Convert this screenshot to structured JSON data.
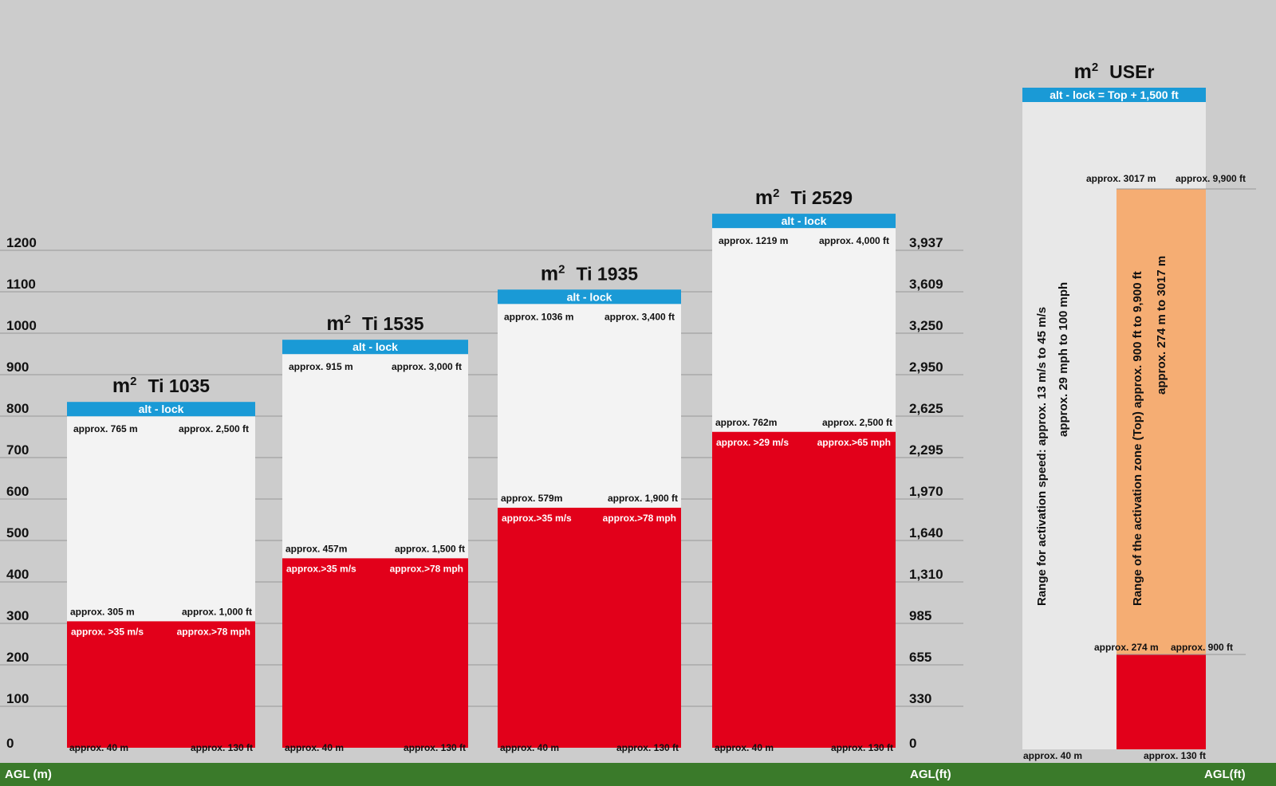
{
  "chart_data": {
    "type": "bar",
    "left_axis": {
      "label": "AGL (m)",
      "ticks": [
        "1200",
        "1100",
        "1000",
        "900",
        "800",
        "700",
        "600",
        "500",
        "400",
        "300",
        "200",
        "100",
        "0"
      ]
    },
    "right_axis": {
      "label": "AGL(ft)",
      "ticks": [
        "3,937",
        "3,609",
        "3,250",
        "2,950",
        "2,625",
        "2,295",
        "1,970",
        "1,640",
        "1,310",
        "985",
        "655",
        "330",
        "0"
      ]
    },
    "right_axis_label_2": "AGL(ft)",
    "colors": {
      "background": "#cccccc",
      "zone": "#f3f3f3",
      "red": "#e2001a",
      "lock": "#1a9ad6",
      "footer": "#3a7a2a",
      "orange": "#f5ad73",
      "user_range": "#e8e8e8"
    },
    "prefix": "m",
    "bars": [
      {
        "model": "Ti 1035",
        "lock_label": "alt - lock",
        "top_m": 765,
        "red_top_m": 305,
        "top_label_m": "approx. 765 m",
        "top_label_ft": "approx. 2,500 ft",
        "red_label_m": "approx. 305 m",
        "red_label_ft": "approx. 1,000 ft",
        "speed_ms": "approx. >35 m/s",
        "speed_mph": "approx.>78 mph",
        "bottom_m": "approx. 40 m",
        "bottom_ft": "approx. 130 ft"
      },
      {
        "model": "Ti 1535",
        "lock_label": "alt - lock",
        "top_m": 915,
        "red_top_m": 457,
        "top_label_m": "approx. 915 m",
        "top_label_ft": "approx. 3,000 ft",
        "red_label_m": "approx. 457m",
        "red_label_ft": "approx. 1,500 ft",
        "speed_ms": "approx.>35 m/s",
        "speed_mph": "approx.>78 mph",
        "bottom_m": "approx. 40 m",
        "bottom_ft": "approx. 130 ft"
      },
      {
        "model": "Ti 1935",
        "lock_label": "alt - lock",
        "top_m": 1036,
        "red_top_m": 579,
        "top_label_m": "approx. 1036 m",
        "top_label_ft": "approx. 3,400 ft",
        "red_label_m": "approx. 579m",
        "red_label_ft": "approx. 1,900 ft",
        "speed_ms": "approx.>35 m/s",
        "speed_mph": "approx.>78 mph",
        "bottom_m": "approx. 40 m",
        "bottom_ft": "approx. 130 ft"
      },
      {
        "model": "Ti 2529",
        "lock_label": "alt - lock",
        "top_m": 1219,
        "red_top_m": 762,
        "top_label_m": "approx. 1219 m",
        "top_label_ft": "approx. 4,000 ft",
        "red_label_m": "approx. 762m",
        "red_label_ft": "approx. 2,500 ft",
        "speed_ms": "approx. >29 m/s",
        "speed_mph": "approx.>65 mph",
        "bottom_m": "approx. 40 m",
        "bottom_ft": "approx. 130 ft"
      }
    ],
    "user": {
      "model": "USEr",
      "lock_label": "alt - lock = Top + 1,500 ft",
      "zone_top_m": "approx. 3017 m",
      "zone_top_ft": "approx. 9,900 ft",
      "zone_bottom_m": "approx. 274 m",
      "zone_bottom_ft": "approx. 900 ft",
      "bottom_m": "approx. 40 m",
      "bottom_ft": "approx. 130 ft",
      "speed_line1": "Range for activation speed:  approx. 13 m/s  to 45 m/s",
      "speed_line2": "approx. 29 mph to  100 mph",
      "zone_line1": "Range of the activation zone (Top) approx. 900 ft to 9,900 ft",
      "zone_line2": "approx. 274 m to  3017 m"
    },
    "ylim": [
      0,
      1200
    ]
  },
  "footer": {
    "left_label": "AGL (m)",
    "mid_label": "AGL(ft)",
    "right_label": "AGL(ft)"
  }
}
